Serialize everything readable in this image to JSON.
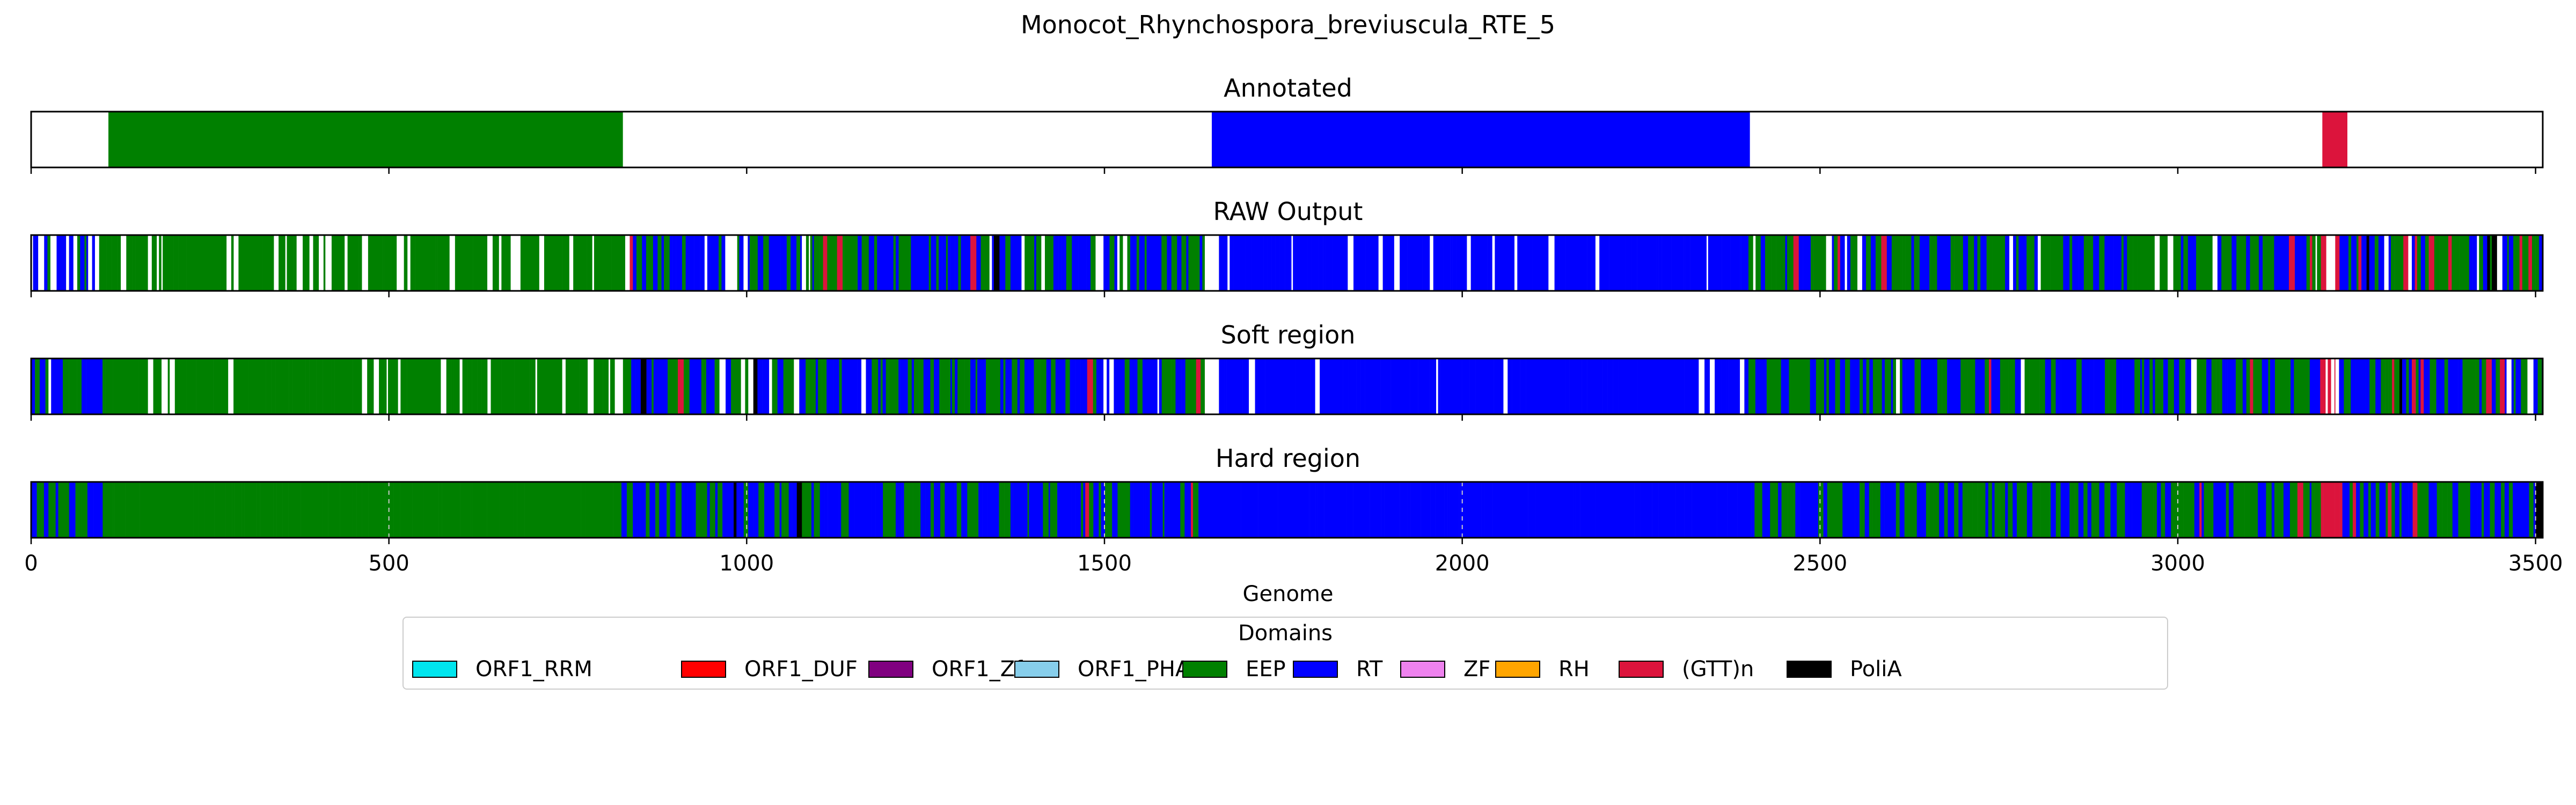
{
  "figure": {
    "title": "Monocot_Rhynchospora_breviuscula_RTE_5"
  },
  "chart_data": {
    "type": "genome-domain-tracks",
    "xlabel": "Genome",
    "xlim": [
      0,
      3510
    ],
    "xticks": [
      0,
      500,
      1000,
      1500,
      2000,
      2500,
      3000,
      3500
    ],
    "grid": "dashed vertical lines at ticks (Hard region panel)",
    "legend": {
      "title": "Domains",
      "placement": "bottom-center",
      "entries": [
        {
          "name": "ORF1_RRM",
          "color": "#00e5ee"
        },
        {
          "name": "ORF1_DUF",
          "color": "#ff0000"
        },
        {
          "name": "ORF1_Zf",
          "color": "#800080"
        },
        {
          "name": "ORF1_PHA",
          "color": "#87ceeb"
        },
        {
          "name": "EEP",
          "color": "#008000"
        },
        {
          "name": "RT",
          "color": "#0000ff"
        },
        {
          "name": "ZF",
          "color": "#ee82ee"
        },
        {
          "name": "RH",
          "color": "#ffa500"
        },
        {
          "name": "(GTT)n",
          "color": "#dc143c"
        },
        {
          "name": "PoliA",
          "color": "#000000"
        }
      ]
    },
    "tracks": [
      {
        "name": "Annotated",
        "segments": [
          {
            "domain": "EEP",
            "start": 108,
            "end": 827
          },
          {
            "domain": "RT",
            "start": 1650,
            "end": 2402
          },
          {
            "domain": "(GTT)n",
            "start": 3202,
            "end": 3237
          }
        ]
      },
      {
        "name": "RAW Output",
        "pattern": "mixed",
        "mixes": [
          {
            "start": 0,
            "end": 100,
            "mix": {
              "RT": 0.55,
              "EEP": 0.25,
              "none": 0.2
            }
          },
          {
            "start": 100,
            "end": 830,
            "mix": {
              "EEP": 0.78,
              "none": 0.22
            }
          },
          {
            "start": 830,
            "end": 1640,
            "mix": {
              "RT": 0.52,
              "EEP": 0.38,
              "none": 0.07,
              "(GTT)n": 0.02,
              "PoliA": 0.01
            }
          },
          {
            "start": 1640,
            "end": 1660,
            "mix": {
              "none": 1.0
            }
          },
          {
            "start": 1660,
            "end": 2400,
            "mix": {
              "RT": 0.9,
              "none": 0.1
            }
          },
          {
            "start": 2400,
            "end": 3200,
            "mix": {
              "EEP": 0.46,
              "RT": 0.44,
              "none": 0.06,
              "(GTT)n": 0.04
            }
          },
          {
            "start": 3200,
            "end": 3220,
            "mix": {
              "(GTT)n": 0.5,
              "none": 0.5
            }
          },
          {
            "start": 3220,
            "end": 3510,
            "mix": {
              "RT": 0.4,
              "EEP": 0.38,
              "(GTT)n": 0.1,
              "none": 0.08,
              "PoliA": 0.04
            }
          }
        ]
      },
      {
        "name": "Soft region",
        "pattern": "mixed",
        "mixes": [
          {
            "start": 0,
            "end": 100,
            "mix": {
              "RT": 0.6,
              "EEP": 0.3,
              "none": 0.1
            }
          },
          {
            "start": 100,
            "end": 830,
            "mix": {
              "EEP": 0.85,
              "none": 0.15
            }
          },
          {
            "start": 830,
            "end": 1640,
            "mix": {
              "RT": 0.52,
              "EEP": 0.4,
              "none": 0.05,
              "(GTT)n": 0.02,
              "PoliA": 0.01
            }
          },
          {
            "start": 1640,
            "end": 1660,
            "mix": {
              "none": 1.0
            }
          },
          {
            "start": 1660,
            "end": 2400,
            "mix": {
              "RT": 0.94,
              "none": 0.06
            }
          },
          {
            "start": 2400,
            "end": 3200,
            "mix": {
              "EEP": 0.47,
              "RT": 0.45,
              "none": 0.04,
              "(GTT)n": 0.04
            }
          },
          {
            "start": 3200,
            "end": 3220,
            "mix": {
              "(GTT)n": 0.5,
              "none": 0.5
            }
          },
          {
            "start": 3220,
            "end": 3510,
            "mix": {
              "RT": 0.42,
              "EEP": 0.38,
              "(GTT)n": 0.1,
              "none": 0.06,
              "PoliA": 0.04
            }
          }
        ]
      },
      {
        "name": "Hard region",
        "pattern": "mixed",
        "mixes": [
          {
            "start": 0,
            "end": 100,
            "mix": {
              "RT": 0.6,
              "EEP": 0.4
            }
          },
          {
            "start": 100,
            "end": 825,
            "mix": {
              "EEP": 1.0
            }
          },
          {
            "start": 825,
            "end": 1635,
            "mix": {
              "RT": 0.55,
              "EEP": 0.42,
              "(GTT)n": 0.02,
              "PoliA": 0.01
            }
          },
          {
            "start": 1635,
            "end": 2395,
            "mix": {
              "RT": 1.0
            }
          },
          {
            "start": 2395,
            "end": 3200,
            "mix": {
              "EEP": 0.5,
              "RT": 0.46,
              "(GTT)n": 0.04
            }
          },
          {
            "start": 3200,
            "end": 3230,
            "mix": {
              "(GTT)n": 1.0
            }
          },
          {
            "start": 3230,
            "end": 3500,
            "mix": {
              "RT": 0.45,
              "EEP": 0.43,
              "(GTT)n": 0.1,
              "PoliA": 0.02
            }
          },
          {
            "start": 3500,
            "end": 3510,
            "mix": {
              "PoliA": 1.0
            }
          }
        ]
      }
    ]
  }
}
